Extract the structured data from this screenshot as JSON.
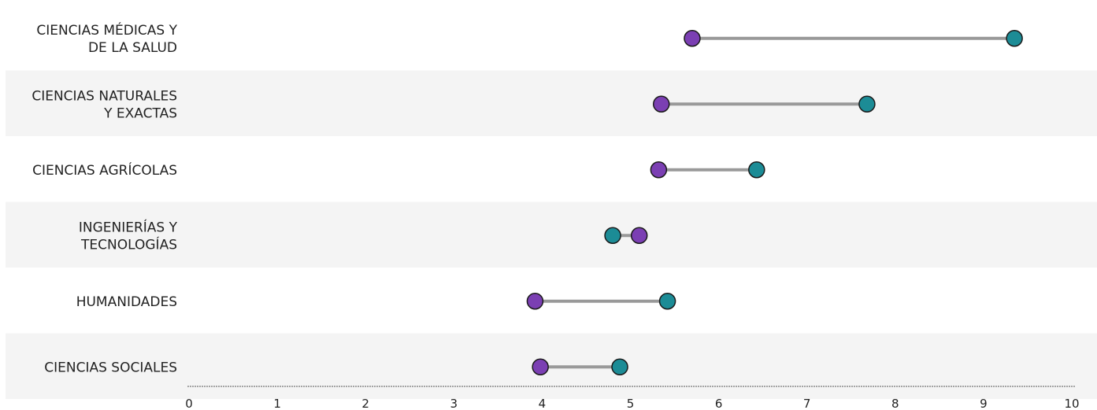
{
  "colors": {
    "series_a": "#7B3FB3",
    "series_b": "#1C8C96",
    "connector": "#999999",
    "band": "#f4f4f4",
    "axis": "#555555",
    "marker_outline": "#1a1a1a"
  },
  "chart_data": {
    "type": "dumbbell",
    "title": "",
    "xlabel": "",
    "ylabel": "",
    "xlim": [
      0,
      10
    ],
    "x_ticks": [
      "0",
      "1",
      "2",
      "3",
      "4",
      "5",
      "6",
      "7",
      "8",
      "9",
      "10"
    ],
    "grid": false,
    "legend": "none",
    "alternating_row_bands": true,
    "categories": [
      {
        "lines": [
          "CIENCIAS MÉDICAS Y",
          "DE LA SALUD"
        ],
        "a": 5.7,
        "b": 9.35
      },
      {
        "lines": [
          "CIENCIAS NATURALES",
          "Y EXACTAS"
        ],
        "a": 5.35,
        "b": 7.68
      },
      {
        "lines": [
          "CIENCIAS AGRÍCOLAS"
        ],
        "a": 5.32,
        "b": 6.43
      },
      {
        "lines": [
          "INGENIERÍAS Y",
          "TECNOLOGÍAS"
        ],
        "a": 5.1,
        "b": 4.8
      },
      {
        "lines": [
          "HUMANIDADES"
        ],
        "a": 3.92,
        "b": 5.42
      },
      {
        "lines": [
          "CIENCIAS SOCIALES"
        ],
        "a": 3.98,
        "b": 4.88
      }
    ]
  }
}
